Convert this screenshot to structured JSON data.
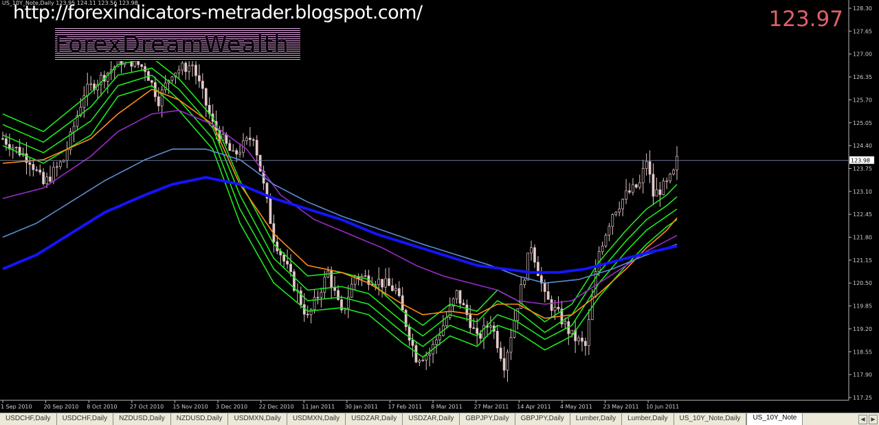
{
  "chart_header": "US_10Y_Note,Daily  123.95 124.11 123.56 123.98",
  "watermark_url": "http://forexindicators-metrader.blogspot.com/",
  "brand_text": "ForexDreamWealth",
  "bid_price": "123.97",
  "tabs": [
    {
      "label": "USDCHF,Daily"
    },
    {
      "label": "USDCHF,Daily"
    },
    {
      "label": "NZDUSD,Daily"
    },
    {
      "label": "NZDUSD,Daily"
    },
    {
      "label": "USDMXN,Daily"
    },
    {
      "label": "USDMXN,Daily"
    },
    {
      "label": "USDZAR,Daily"
    },
    {
      "label": "USDZAR,Daily"
    },
    {
      "label": "GBPJPY,Daily"
    },
    {
      "label": "GBPJPY,Daily"
    },
    {
      "label": "Lumber,Daily"
    },
    {
      "label": "Lumber,Daily"
    },
    {
      "label": "US_10Y_Note,Daily"
    },
    {
      "label": "US_10Y_Note"
    }
  ],
  "colors": {
    "background": "#000000",
    "candle": "#e3c9c9",
    "ma_green": "#1ee81e",
    "ma_orange": "#ff8c1a",
    "ma_purple": "#9a2ac8",
    "ma_steel": "#5a8fd6",
    "ma_blue": "#1414ff",
    "bid_text": "#e2606a"
  },
  "chart_data": {
    "type": "line",
    "ylim": [
      117.25,
      128.3
    ],
    "y_ticks": [
      "128.30",
      "127.65",
      "127.00",
      "126.35",
      "125.70",
      "125.05",
      "124.40",
      "123.75",
      "123.10",
      "122.45",
      "121.80",
      "121.15",
      "120.50",
      "119.85",
      "119.20",
      "118.55",
      "117.90",
      "117.25"
    ],
    "current_price": "123.98",
    "x_ticks": [
      "1 Sep 2010",
      "20 Sep 2010",
      "8 Oct 2010",
      "27 Oct 2010",
      "15 Nov 2010",
      "3 Dec 2010",
      "22 Dec 2010",
      "11 Jan 2011",
      "30 Jan 2011",
      "17 Feb 2011",
      "8 Mar 2011",
      "27 Mar 2011",
      "14 Apr 2011",
      "4 May 2011",
      "23 May 2011",
      "10 Jun 2011"
    ],
    "bars": 200,
    "closes": [
      [
        0,
        124.6
      ],
      [
        8,
        124.0
      ],
      [
        12,
        123.3
      ],
      [
        18,
        124.0
      ],
      [
        24,
        125.9
      ],
      [
        30,
        126.4
      ],
      [
        36,
        126.9
      ],
      [
        42,
        126.6
      ],
      [
        46,
        125.7
      ],
      [
        50,
        126.5
      ],
      [
        56,
        126.7
      ],
      [
        62,
        125.0
      ],
      [
        68,
        124.1
      ],
      [
        74,
        124.7
      ],
      [
        80,
        121.8
      ],
      [
        84,
        120.9
      ],
      [
        90,
        119.5
      ],
      [
        96,
        120.8
      ],
      [
        100,
        119.6
      ],
      [
        104,
        120.7
      ],
      [
        110,
        120.6
      ],
      [
        116,
        120.3
      ],
      [
        122,
        118.4
      ],
      [
        126,
        118.5
      ],
      [
        130,
        119.3
      ],
      [
        134,
        120.2
      ],
      [
        138,
        119.4
      ],
      [
        140,
        118.9
      ],
      [
        144,
        119.4
      ],
      [
        148,
        118.2
      ],
      [
        152,
        119.9
      ],
      [
        156,
        121.6
      ],
      [
        160,
        120.1
      ],
      [
        164,
        119.6
      ],
      [
        168,
        119.0
      ],
      [
        172,
        118.7
      ],
      [
        176,
        121.4
      ],
      [
        180,
        122.5
      ],
      [
        184,
        123.0
      ],
      [
        188,
        123.3
      ],
      [
        190,
        124.0
      ],
      [
        192,
        123.0
      ],
      [
        196,
        123.3
      ],
      [
        198,
        123.6
      ],
      [
        199,
        123.98
      ]
    ],
    "series": [
      {
        "key": "ma_green_fast",
        "points": [
          [
            0,
            125.3
          ],
          [
            12,
            124.8
          ],
          [
            26,
            125.9
          ],
          [
            34,
            126.7
          ],
          [
            44,
            126.9
          ],
          [
            52,
            126.3
          ],
          [
            62,
            125.2
          ],
          [
            70,
            123.4
          ],
          [
            80,
            121.6
          ],
          [
            90,
            120.7
          ],
          [
            100,
            120.8
          ],
          [
            108,
            120.6
          ],
          [
            118,
            119.7
          ],
          [
            124,
            119.3
          ],
          [
            132,
            119.9
          ],
          [
            140,
            119.7
          ],
          [
            146,
            120.3
          ],
          [
            152,
            120.0
          ],
          [
            160,
            119.4
          ],
          [
            168,
            119.9
          ],
          [
            176,
            121.1
          ],
          [
            184,
            122.0
          ],
          [
            190,
            122.6
          ],
          [
            196,
            123.0
          ],
          [
            199,
            123.3
          ]
        ]
      },
      {
        "key": "ma_green_2",
        "points": [
          [
            0,
            125.0
          ],
          [
            12,
            124.5
          ],
          [
            26,
            125.5
          ],
          [
            34,
            126.4
          ],
          [
            44,
            126.6
          ],
          [
            52,
            126.0
          ],
          [
            62,
            124.9
          ],
          [
            70,
            123.0
          ],
          [
            80,
            121.2
          ],
          [
            90,
            120.3
          ],
          [
            100,
            120.4
          ],
          [
            108,
            120.2
          ],
          [
            118,
            119.4
          ],
          [
            124,
            119.0
          ],
          [
            132,
            119.6
          ],
          [
            140,
            119.4
          ],
          [
            146,
            120.0
          ],
          [
            152,
            119.7
          ],
          [
            160,
            119.1
          ],
          [
            168,
            119.6
          ],
          [
            176,
            120.8
          ],
          [
            184,
            121.7
          ],
          [
            190,
            122.3
          ],
          [
            196,
            122.7
          ],
          [
            199,
            122.95
          ]
        ]
      },
      {
        "key": "ma_green_3",
        "points": [
          [
            0,
            124.7
          ],
          [
            12,
            124.2
          ],
          [
            26,
            125.1
          ],
          [
            34,
            126.1
          ],
          [
            44,
            126.4
          ],
          [
            52,
            125.7
          ],
          [
            62,
            124.6
          ],
          [
            70,
            122.6
          ],
          [
            80,
            120.9
          ],
          [
            90,
            120.0
          ],
          [
            100,
            120.1
          ],
          [
            108,
            119.9
          ],
          [
            118,
            119.1
          ],
          [
            124,
            118.7
          ],
          [
            132,
            119.3
          ],
          [
            140,
            119.0
          ],
          [
            146,
            119.6
          ],
          [
            152,
            119.4
          ],
          [
            160,
            118.9
          ],
          [
            168,
            119.3
          ],
          [
            176,
            120.5
          ],
          [
            184,
            121.4
          ],
          [
            190,
            122.0
          ],
          [
            196,
            122.4
          ],
          [
            199,
            122.6
          ]
        ]
      },
      {
        "key": "ma_green_4",
        "points": [
          [
            0,
            124.4
          ],
          [
            12,
            123.9
          ],
          [
            26,
            124.7
          ],
          [
            34,
            125.8
          ],
          [
            44,
            126.1
          ],
          [
            52,
            125.4
          ],
          [
            62,
            124.3
          ],
          [
            70,
            122.2
          ],
          [
            80,
            120.5
          ],
          [
            90,
            119.7
          ],
          [
            100,
            119.8
          ],
          [
            108,
            119.6
          ],
          [
            118,
            118.8
          ],
          [
            124,
            118.4
          ],
          [
            132,
            119.0
          ],
          [
            140,
            118.7
          ],
          [
            146,
            119.3
          ],
          [
            152,
            119.1
          ],
          [
            160,
            118.6
          ],
          [
            168,
            119.0
          ],
          [
            176,
            120.1
          ],
          [
            184,
            121.0
          ],
          [
            190,
            121.6
          ],
          [
            196,
            122.1
          ],
          [
            199,
            122.3
          ]
        ]
      },
      {
        "key": "ma_orange",
        "points": [
          [
            0,
            123.9
          ],
          [
            12,
            124.0
          ],
          [
            26,
            124.6
          ],
          [
            34,
            125.3
          ],
          [
            44,
            126.0
          ],
          [
            52,
            125.7
          ],
          [
            62,
            125.0
          ],
          [
            70,
            123.3
          ],
          [
            80,
            121.9
          ],
          [
            90,
            121.0
          ],
          [
            100,
            120.8
          ],
          [
            108,
            120.5
          ],
          [
            118,
            119.9
          ],
          [
            124,
            119.6
          ],
          [
            132,
            119.7
          ],
          [
            140,
            119.6
          ],
          [
            146,
            119.9
          ],
          [
            152,
            119.9
          ],
          [
            160,
            119.5
          ],
          [
            168,
            119.6
          ],
          [
            176,
            120.2
          ],
          [
            184,
            120.9
          ],
          [
            190,
            121.5
          ],
          [
            196,
            122.0
          ],
          [
            199,
            122.35
          ]
        ]
      },
      {
        "key": "ma_purple",
        "points": [
          [
            0,
            122.9
          ],
          [
            12,
            123.2
          ],
          [
            26,
            124.1
          ],
          [
            34,
            124.8
          ],
          [
            44,
            125.3
          ],
          [
            52,
            125.4
          ],
          [
            62,
            125.0
          ],
          [
            72,
            124.3
          ],
          [
            82,
            123.0
          ],
          [
            92,
            122.3
          ],
          [
            102,
            121.9
          ],
          [
            112,
            121.5
          ],
          [
            122,
            121.0
          ],
          [
            130,
            120.7
          ],
          [
            138,
            120.5
          ],
          [
            146,
            120.3
          ],
          [
            152,
            120.0
          ],
          [
            160,
            119.9
          ],
          [
            168,
            120.0
          ],
          [
            176,
            120.5
          ],
          [
            184,
            121.0
          ],
          [
            190,
            121.4
          ],
          [
            196,
            121.7
          ],
          [
            199,
            121.85
          ]
        ]
      },
      {
        "key": "ma_steel",
        "points": [
          [
            0,
            121.8
          ],
          [
            10,
            122.2
          ],
          [
            20,
            122.8
          ],
          [
            30,
            123.4
          ],
          [
            42,
            124.0
          ],
          [
            50,
            124.3
          ],
          [
            60,
            124.3
          ],
          [
            70,
            124.0
          ],
          [
            80,
            123.3
          ],
          [
            90,
            122.8
          ],
          [
            100,
            122.4
          ],
          [
            112,
            122.0
          ],
          [
            124,
            121.6
          ],
          [
            134,
            121.3
          ],
          [
            144,
            121.0
          ],
          [
            152,
            120.7
          ],
          [
            160,
            120.5
          ],
          [
            170,
            120.6
          ],
          [
            180,
            120.9
          ],
          [
            190,
            121.3
          ],
          [
            199,
            121.6
          ]
        ]
      },
      {
        "key": "ma_blue",
        "points": [
          [
            0,
            120.9
          ],
          [
            10,
            121.3
          ],
          [
            20,
            121.9
          ],
          [
            30,
            122.5
          ],
          [
            42,
            123.0
          ],
          [
            50,
            123.3
          ],
          [
            60,
            123.5
          ],
          [
            70,
            123.3
          ],
          [
            80,
            122.9
          ],
          [
            90,
            122.6
          ],
          [
            100,
            122.3
          ],
          [
            110,
            121.9
          ],
          [
            120,
            121.6
          ],
          [
            130,
            121.3
          ],
          [
            140,
            121.0
          ],
          [
            148,
            120.9
          ],
          [
            156,
            120.8
          ],
          [
            164,
            120.8
          ],
          [
            172,
            120.9
          ],
          [
            180,
            121.1
          ],
          [
            190,
            121.35
          ],
          [
            199,
            121.55
          ]
        ]
      }
    ]
  }
}
